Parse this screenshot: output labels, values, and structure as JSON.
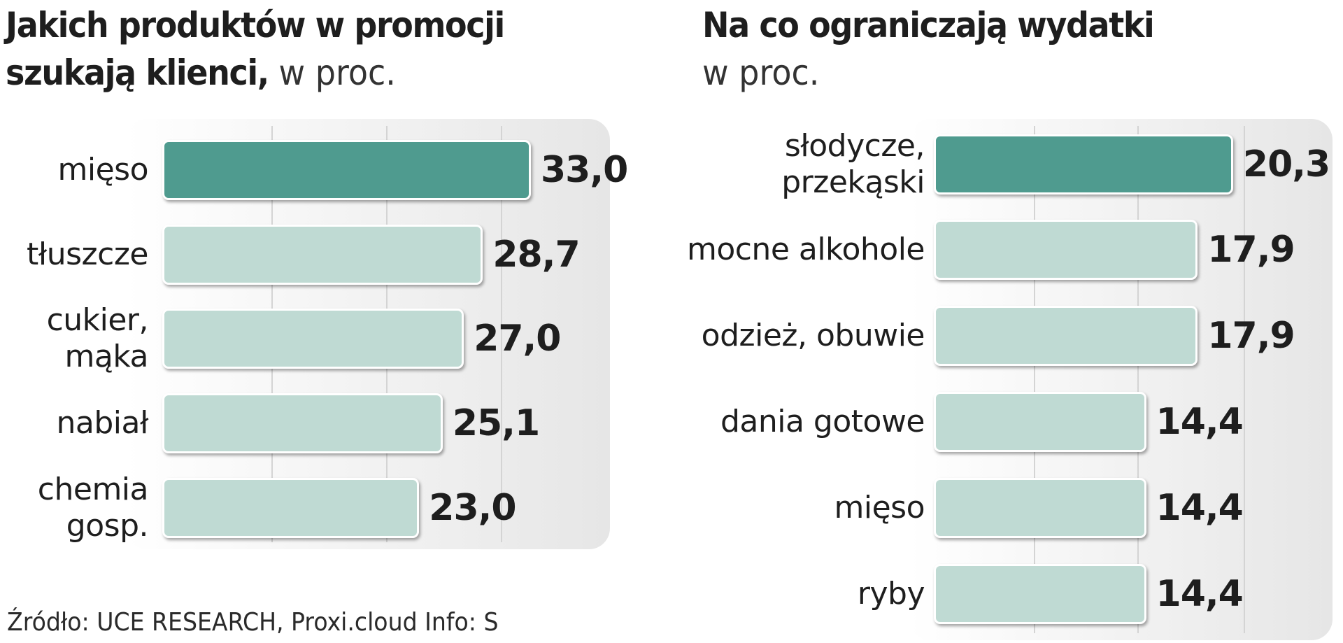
{
  "colors": {
    "highlight_bar": "#4f9b8f",
    "normal_bar": "#bfdad3",
    "text": "#1e1e1e"
  },
  "chart_data": [
    {
      "type": "bar",
      "orientation": "horizontal",
      "title_line1": "Jakich produktów w promocji",
      "title_line2": "szukają klienci,",
      "unit": "w proc.",
      "categories": [
        "mięso",
        "tłuszcze",
        "cukier, mąka",
        "nabiał",
        "chemia gosp."
      ],
      "category_lines": [
        [
          "mięso"
        ],
        [
          "tłuszcze"
        ],
        [
          "cukier,",
          "mąka"
        ],
        [
          "nabiał"
        ],
        [
          "chemia",
          "gosp."
        ]
      ],
      "values": [
        33.0,
        28.7,
        27.0,
        25.1,
        23.0
      ],
      "value_labels": [
        "33,0",
        "28,7",
        "27,0",
        "25,1",
        "23,0"
      ],
      "highlight_index": 0,
      "grid": true,
      "xlim": [
        0,
        40
      ]
    },
    {
      "type": "bar",
      "orientation": "horizontal",
      "title_line1": "Na co ograniczają wydatki",
      "title_line2": "",
      "unit": "w proc.",
      "categories": [
        "słodycze, przekąski",
        "mocne alkohole",
        "odzież, obuwie",
        "dania gotowe",
        "mięso",
        "ryby"
      ],
      "category_lines": [
        [
          "słodycze,",
          "przekąski"
        ],
        [
          "mocne alkohole"
        ],
        [
          "odzież, obuwie"
        ],
        [
          "dania gotowe"
        ],
        [
          "mięso"
        ],
        [
          "ryby"
        ]
      ],
      "values": [
        20.3,
        17.9,
        17.9,
        14.4,
        14.4,
        14.4
      ],
      "value_labels": [
        "20,3",
        "17,9",
        "17,9",
        "14,4",
        "14,4",
        "14,4"
      ],
      "highlight_index": 0,
      "grid": true,
      "xlim": [
        0,
        24
      ]
    }
  ],
  "source_text": "Źródło: UCE RESEARCH, Proxi.cloud   Info: S"
}
